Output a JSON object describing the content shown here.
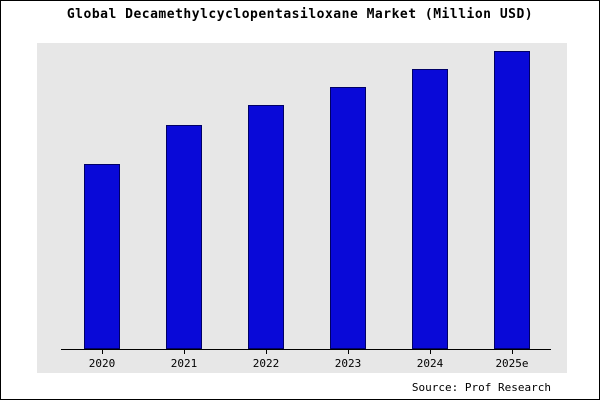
{
  "title": "Global Decamethylcyclopentasiloxane Market (Million USD)",
  "source": "Source: Prof Research",
  "colors": {
    "bar_fill": "#0909d8",
    "bar_border": "#000066",
    "plot_bg": "#e7e7e7",
    "page_bg": "#ffffff",
    "frame_border": "#000000"
  },
  "chart_data": {
    "type": "bar",
    "categories": [
      "2020",
      "2021",
      "2022",
      "2023",
      "2024",
      "2025e"
    ],
    "values": [
      62,
      75,
      82,
      88,
      94,
      100
    ],
    "title": "Global Decamethylcyclopentasiloxane Market (Million USD)",
    "xlabel": "",
    "ylabel": "",
    "ylim": [
      0,
      110
    ],
    "grid": false,
    "legend": false,
    "y_axis_labels_visible": false,
    "annotation": "Source: Prof Research"
  }
}
